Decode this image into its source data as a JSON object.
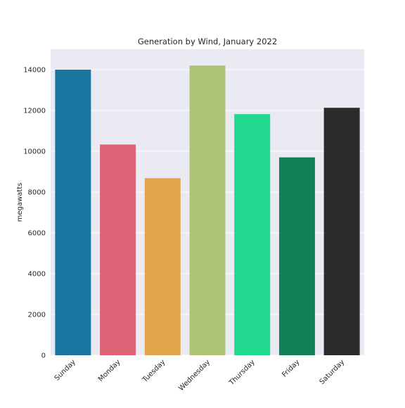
{
  "chart_data": {
    "type": "bar",
    "title": "Generation by Wind, January 2022",
    "xlabel": "",
    "ylabel": "megawatts",
    "categories": [
      "Sunday",
      "Monday",
      "Tuesday",
      "Wednesday",
      "Thursday",
      "Friday",
      "Saturday"
    ],
    "values": [
      14000,
      10330,
      8680,
      14200,
      11820,
      9700,
      12130
    ],
    "colors": [
      "#1a75a0",
      "#dd6476",
      "#e0a54a",
      "#aec373",
      "#21d98e",
      "#128157",
      "#2b2b2b"
    ],
    "ylim": [
      0,
      15000
    ],
    "yticks": [
      0,
      2000,
      4000,
      6000,
      8000,
      10000,
      12000,
      14000
    ],
    "grid": true,
    "background_color": "#eaeaf2",
    "legend": "none"
  }
}
